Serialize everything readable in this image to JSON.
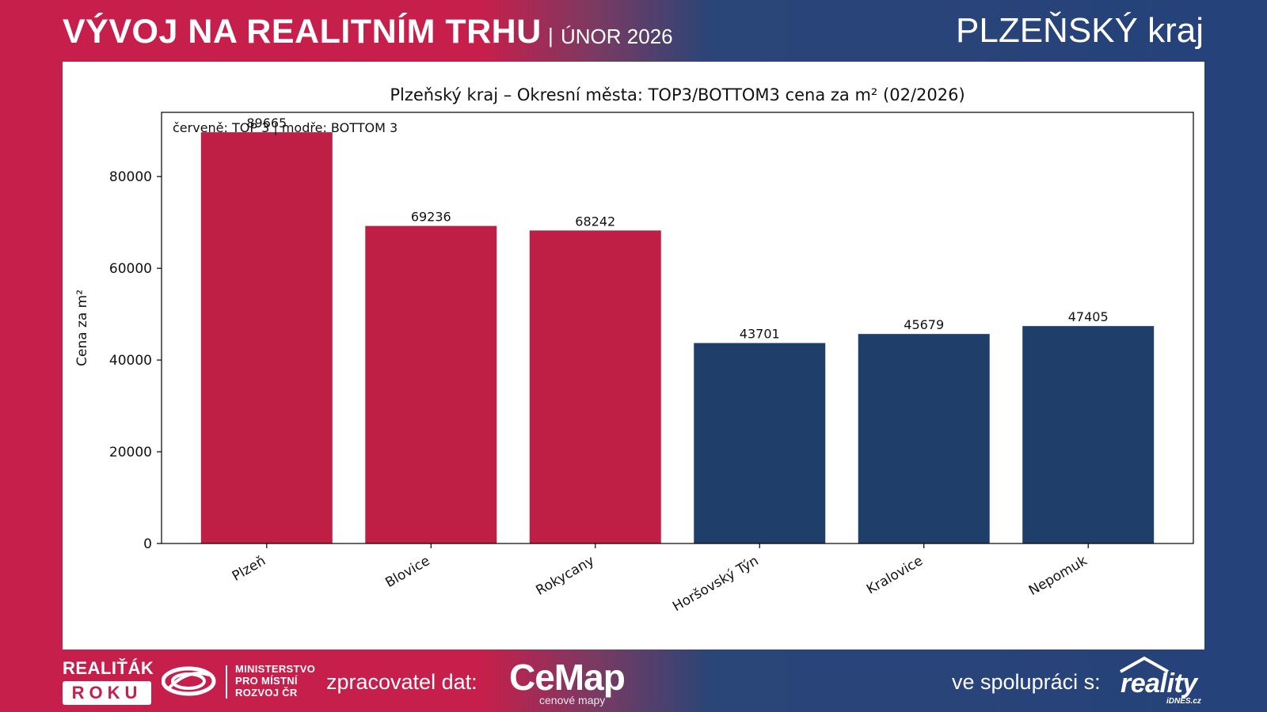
{
  "header": {
    "title": "VÝVOJ NA REALITNÍM TRHU",
    "separator": "|",
    "date": "ÚNOR 2026",
    "region": "PLZEŇSKÝ kraj"
  },
  "chart_data": {
    "type": "bar",
    "title": "Plzeňský kraj – Okresní města: TOP3/BOTTOM3 cena za m² (02/2026)",
    "annotation": "červeně: TOP 3 | modře: BOTTOM 3",
    "xlabel": "",
    "ylabel": "Cena za m²",
    "categories": [
      "Plzeň",
      "Blovice",
      "Rokycany",
      "Horšovský Týn",
      "Kralovice",
      "Nepomuk"
    ],
    "values": [
      89665,
      69236,
      68242,
      43701,
      45679,
      47405
    ],
    "groups": [
      "top",
      "top",
      "top",
      "bottom",
      "bottom",
      "bottom"
    ],
    "colors": {
      "top": "#c01f45",
      "bottom": "#1f3e69"
    },
    "ylim": [
      0,
      94000
    ],
    "yticks": [
      0,
      20000,
      40000,
      60000,
      80000
    ],
    "grid": false
  },
  "footer": {
    "brand_line1": "REALIŤÁK",
    "brand_line2": "ROKU",
    "ministry": [
      "MINISTERSTVO",
      "PRO MÍSTNÍ",
      "ROZVOJ ČR"
    ],
    "processor_label": "zpracovatel dat:",
    "processor_name": "CeMap",
    "processor_sub": "cenové mapy",
    "partner_label": "ve spolupráci s:",
    "partner_name": "reality",
    "partner_sub": "iDNES.cz"
  },
  "colors": {
    "brand_red": "#c71f4b",
    "brand_blue": "#25427a"
  }
}
